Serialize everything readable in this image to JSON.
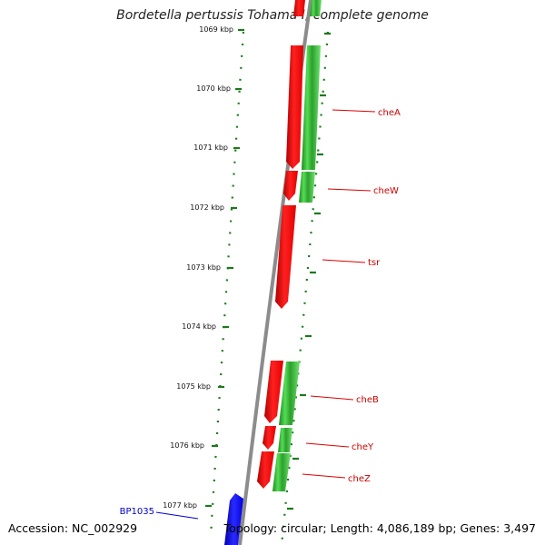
{
  "title": "Bordetella pertussis Tohama I, complete genome",
  "footer": {
    "accession": "Accession: NC_002929",
    "summary": "Topology: circular; Length: 4,086,189 bp; Genes: 3,497"
  },
  "colors": {
    "backbone": "#8c8c8c",
    "tick": "#1a7a1a",
    "forward_gene": "#ff0000",
    "reverse_gene": "#33cc33",
    "highlight_gene": "#0000ff",
    "label_red": "#cc0000",
    "label_blue": "#0000cc"
  },
  "ruler": {
    "unit": "kbp",
    "labels": [
      "1069 kbp",
      "1070 kbp",
      "1071 kbp",
      "1072 kbp",
      "1073 kbp",
      "1074 kbp",
      "1075 kbp",
      "1076 kbp",
      "1077 kbp"
    ]
  },
  "genes": [
    {
      "label": "cheA",
      "strand": "reverse",
      "color": "red"
    },
    {
      "label": "cheW",
      "strand": "reverse",
      "color": "red"
    },
    {
      "label": "tsr",
      "strand": "reverse",
      "color": "red"
    },
    {
      "label": "cheB",
      "strand": "reverse",
      "color": "red"
    },
    {
      "label": "cheY",
      "strand": "reverse",
      "color": "red"
    },
    {
      "label": "cheZ",
      "strand": "reverse",
      "color": "red"
    },
    {
      "label": "BP1035",
      "strand": "forward",
      "color": "blue"
    }
  ]
}
